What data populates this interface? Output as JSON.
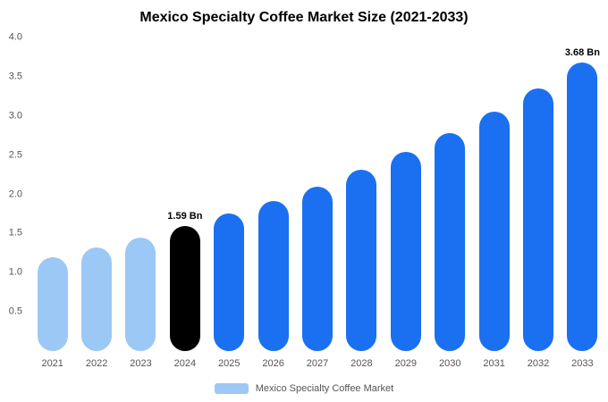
{
  "title": "Mexico Specialty Coffee Market Size (2021-2033)",
  "legend": {
    "label": "Mexico Specialty Coffee Market",
    "swatch_color": "#9cc8f5"
  },
  "colors": {
    "past_bar": "#9cc8f5",
    "highlight_bar": "#000000",
    "future_bar": "#1a70f0"
  },
  "chart_data": {
    "type": "bar",
    "title": "Mexico Specialty Coffee Market Size (2021-2033)",
    "xlabel": "",
    "ylabel": "",
    "ylim": [
      0,
      4
    ],
    "grid": false,
    "legend_position": "bottom",
    "categories": [
      "2021",
      "2022",
      "2023",
      "2024",
      "2025",
      "2026",
      "2027",
      "2028",
      "2029",
      "2030",
      "2031",
      "2032",
      "2033"
    ],
    "values": [
      1.2,
      1.32,
      1.45,
      1.59,
      1.75,
      1.92,
      2.1,
      2.31,
      2.54,
      2.78,
      3.06,
      3.35,
      3.68
    ],
    "bar_colors": [
      "#9cc8f5",
      "#9cc8f5",
      "#9cc8f5",
      "#000000",
      "#1a70f0",
      "#1a70f0",
      "#1a70f0",
      "#1a70f0",
      "#1a70f0",
      "#1a70f0",
      "#1a70f0",
      "#1a70f0",
      "#1a70f0"
    ],
    "y_ticks": [
      "4.0",
      "3.5",
      "3.0",
      "2.5",
      "2.0",
      "1.5",
      "1.0",
      "0.5"
    ],
    "annotations": [
      {
        "index": 3,
        "text": "1.59 Bn"
      },
      {
        "index": 12,
        "text": "3.68 Bn"
      }
    ]
  }
}
